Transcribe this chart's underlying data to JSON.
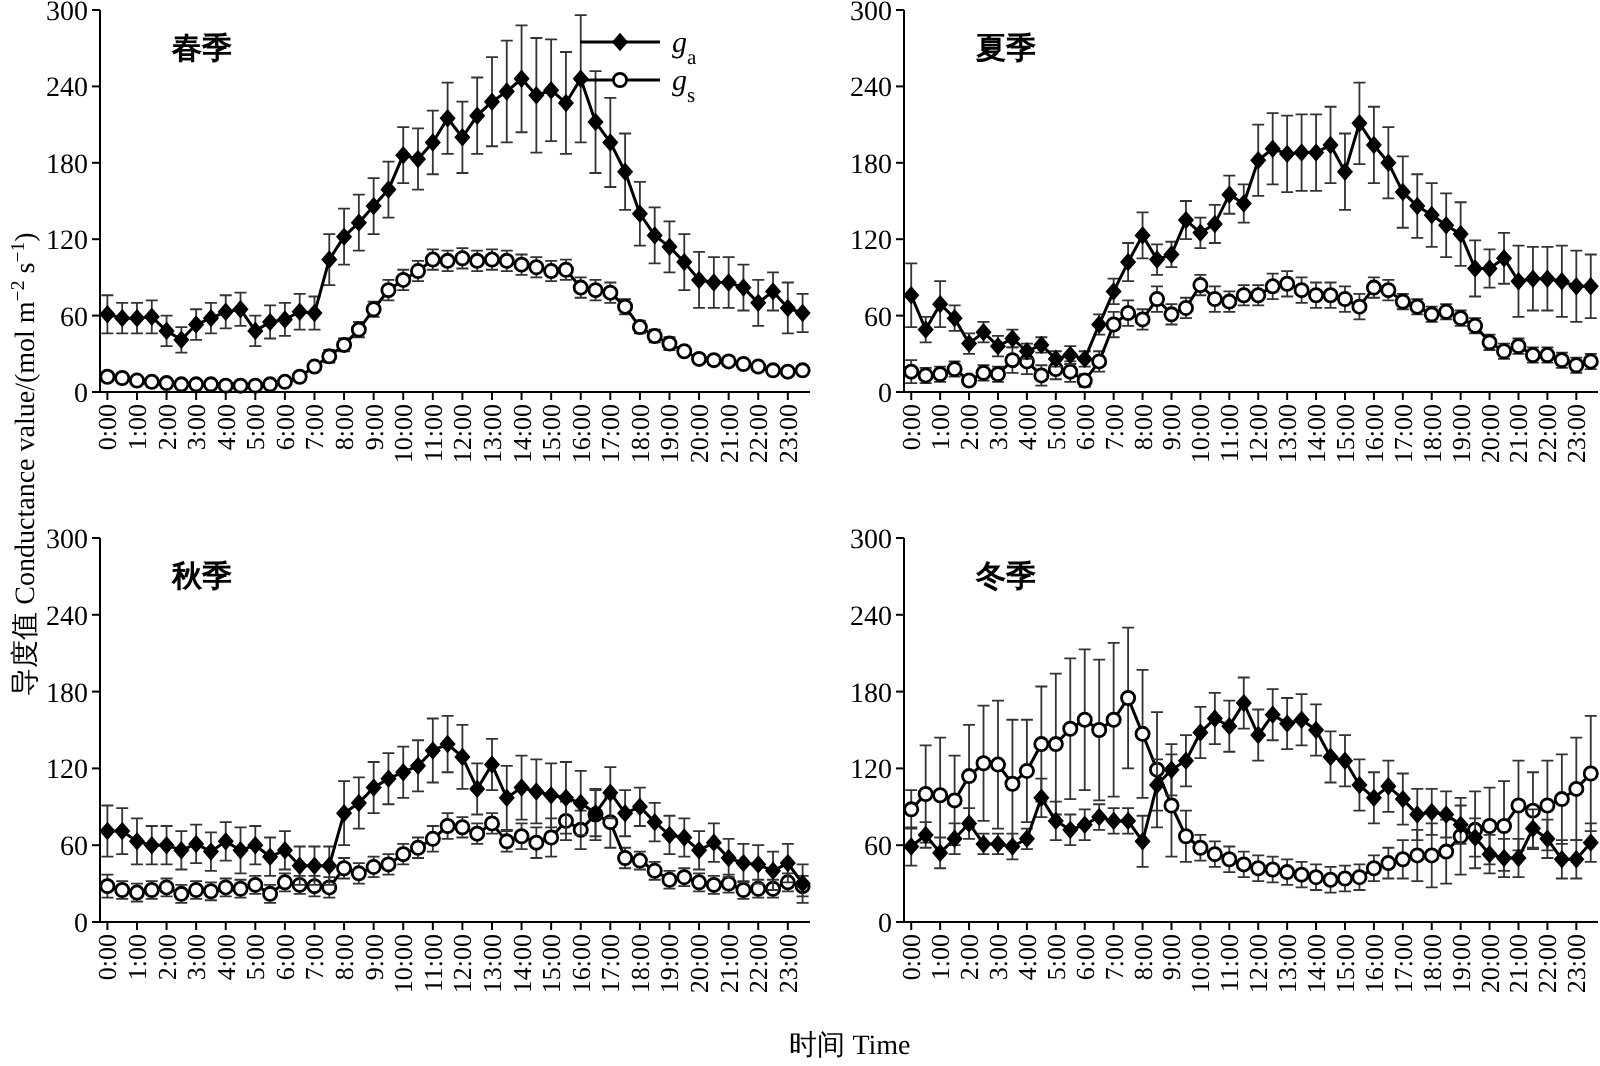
{
  "chart_data": [
    {
      "type": "line",
      "title": "春季",
      "ylabel": "导度值 Conductance value/(mol m$^{−2}$ s$^{−1}$)",
      "xlabel": "时间 Time",
      "legend": "top right",
      "categories": [
        "0:00",
        null,
        "1:00",
        null,
        "2:00",
        null,
        "3:00",
        null,
        "4:00",
        null,
        "5:00",
        null,
        "6:00",
        null,
        "7:00",
        null,
        "8:00",
        null,
        "9:00",
        null,
        "10:00",
        null,
        "11:00",
        null,
        "12:00",
        null,
        "13:00",
        null,
        "14:00",
        null,
        "15:00",
        null,
        "16:00",
        null,
        "17:00",
        null,
        "18:00",
        null,
        "19:00",
        null,
        "20:00",
        null,
        "21:00",
        null,
        "22:00",
        null,
        "23:00",
        null
      ],
      "ylim": [
        0,
        300
      ],
      "yticks": [
        0,
        60,
        120,
        180,
        240,
        300
      ],
      "series": [
        {
          "name": "g$_{a}$",
          "color": "#000000",
          "marker": "diamond",
          "values": [
            61,
            58,
            58,
            59,
            48,
            41,
            53,
            58,
            63,
            65,
            48,
            55,
            57,
            63,
            62,
            104,
            122,
            133,
            146,
            159,
            186,
            183,
            196,
            215,
            200,
            217,
            228,
            236,
            246,
            233,
            237,
            227,
            246,
            212,
            196,
            173,
            140,
            123,
            114,
            102,
            88,
            86,
            86,
            82,
            70,
            79,
            66,
            62
          ],
          "errors": [
            15,
            12,
            12,
            13,
            12,
            10,
            12,
            12,
            13,
            13,
            12,
            13,
            13,
            14,
            13,
            20,
            22,
            22,
            22,
            22,
            22,
            24,
            25,
            28,
            28,
            30,
            35,
            40,
            42,
            45,
            40,
            40,
            50,
            40,
            35,
            30,
            25,
            22,
            20,
            22,
            22,
            20,
            20,
            18,
            18,
            15,
            20,
            15
          ]
        },
        {
          "name": "g$_{s}$",
          "color": "#000000",
          "marker": "circle",
          "values": [
            12,
            11,
            9,
            8,
            7,
            6,
            6,
            6,
            5,
            5,
            5,
            6,
            8,
            12,
            20,
            28,
            37,
            49,
            65,
            80,
            88,
            95,
            104,
            103,
            105,
            103,
            104,
            103,
            100,
            98,
            95,
            96,
            82,
            80,
            78,
            67,
            51,
            44,
            38,
            32,
            26,
            25,
            24,
            22,
            20,
            17,
            16,
            17
          ],
          "errors": [
            null,
            null,
            null,
            null,
            null,
            null,
            null,
            null,
            null,
            null,
            null,
            null,
            null,
            null,
            null,
            5,
            5,
            6,
            6,
            8,
            8,
            8,
            8,
            8,
            8,
            8,
            8,
            8,
            8,
            8,
            8,
            8,
            8,
            8,
            8,
            6,
            5,
            5,
            5,
            null,
            null,
            null,
            null,
            null,
            null,
            null,
            null,
            null
          ]
        }
      ]
    },
    {
      "type": "line",
      "title": "夏季",
      "categories": [
        "0:00",
        null,
        "1:00",
        null,
        "2:00",
        null,
        "3:00",
        null,
        "4:00",
        null,
        "5:00",
        null,
        "6:00",
        null,
        "7:00",
        null,
        "8:00",
        null,
        "9:00",
        null,
        "10:00",
        null,
        "11:00",
        null,
        "12:00",
        null,
        "13:00",
        null,
        "14:00",
        null,
        "15:00",
        null,
        "16:00",
        null,
        "17:00",
        null,
        "18:00",
        null,
        "19:00",
        null,
        "20:00",
        null,
        "21:00",
        null,
        "22:00",
        null,
        "23:00",
        null
      ],
      "ylim": [
        0,
        300
      ],
      "yticks": [
        0,
        60,
        120,
        180,
        240,
        300
      ],
      "series": [
        {
          "color": "#000000",
          "marker": "diamond",
          "values": [
            76,
            49,
            69,
            58,
            38,
            47,
            36,
            42,
            32,
            37,
            26,
            29,
            26,
            53,
            79,
            102,
            123,
            104,
            108,
            135,
            125,
            132,
            155,
            148,
            182,
            191,
            187,
            188,
            188,
            194,
            173,
            211,
            194,
            180,
            157,
            146,
            139,
            131,
            124,
            97,
            97,
            105,
            87,
            89,
            89,
            87,
            83,
            83
          ],
          "errors": [
            25,
            10,
            18,
            10,
            8,
            8,
            8,
            7,
            6,
            6,
            6,
            7,
            6,
            8,
            10,
            15,
            18,
            12,
            10,
            15,
            12,
            15,
            15,
            15,
            28,
            28,
            30,
            30,
            30,
            30,
            30,
            32,
            30,
            28,
            28,
            25,
            25,
            25,
            25,
            22,
            15,
            20,
            28,
            25,
            25,
            28,
            28,
            25
          ]
        },
        {
          "color": "#000000",
          "marker": "circle",
          "values": [
            16,
            13,
            14,
            18,
            9,
            15,
            14,
            25,
            24,
            13,
            18,
            16,
            9,
            24,
            53,
            62,
            57,
            73,
            61,
            66,
            84,
            73,
            71,
            76,
            76,
            83,
            85,
            80,
            76,
            76,
            73,
            67,
            82,
            80,
            71,
            67,
            61,
            63,
            58,
            52,
            39,
            32,
            36,
            29,
            29,
            25,
            21,
            24
          ],
          "errors": [
            9,
            6,
            6,
            6,
            null,
            6,
            6,
            10,
            10,
            8,
            8,
            8,
            5,
            8,
            10,
            10,
            8,
            10,
            8,
            8,
            8,
            10,
            8,
            8,
            8,
            10,
            10,
            10,
            10,
            10,
            10,
            10,
            8,
            8,
            6,
            6,
            6,
            6,
            6,
            6,
            6,
            6,
            6,
            6,
            6,
            6,
            6,
            6
          ]
        }
      ]
    },
    {
      "type": "line",
      "title": "秋季",
      "categories": [
        "0:00",
        null,
        "1:00",
        null,
        "2:00",
        null,
        "3:00",
        null,
        "4:00",
        null,
        "5:00",
        null,
        "6:00",
        null,
        "7:00",
        null,
        "8:00",
        null,
        "9:00",
        null,
        "10:00",
        null,
        "11:00",
        null,
        "12:00",
        null,
        "13:00",
        null,
        "14:00",
        null,
        "15:00",
        null,
        "16:00",
        null,
        "17:00",
        null,
        "18:00",
        null,
        "19:00",
        null,
        "20:00",
        null,
        "21:00",
        null,
        "22:00",
        null,
        "23:00",
        null
      ],
      "ylim": [
        0,
        300
      ],
      "yticks": [
        0,
        60,
        120,
        180,
        240,
        300
      ],
      "series": [
        {
          "color": "#000000",
          "marker": "diamond",
          "values": [
            71,
            71,
            63,
            60,
            60,
            56,
            61,
            55,
            63,
            56,
            60,
            51,
            56,
            44,
            44,
            44,
            85,
            93,
            105,
            112,
            117,
            122,
            134,
            139,
            129,
            104,
            123,
            97,
            105,
            102,
            99,
            97,
            93,
            85,
            101,
            85,
            90,
            78,
            68,
            66,
            56,
            62,
            50,
            46,
            45,
            40,
            46,
            30
          ],
          "errors": [
            20,
            18,
            18,
            15,
            15,
            15,
            15,
            15,
            15,
            18,
            15,
            15,
            15,
            15,
            15,
            15,
            25,
            20,
            20,
            20,
            20,
            20,
            25,
            22,
            25,
            20,
            20,
            25,
            25,
            25,
            25,
            28,
            25,
            18,
            20,
            18,
            15,
            15,
            15,
            15,
            15,
            15,
            15,
            15,
            15,
            15,
            15,
            15
          ]
        },
        {
          "color": "#000000",
          "marker": "circle",
          "values": [
            28,
            25,
            23,
            25,
            27,
            22,
            25,
            24,
            27,
            26,
            29,
            22,
            31,
            29,
            28,
            27,
            42,
            38,
            43,
            45,
            53,
            58,
            65,
            75,
            74,
            69,
            77,
            63,
            67,
            62,
            66,
            79,
            72,
            84,
            78,
            50,
            48,
            40,
            33,
            35,
            31,
            29,
            30,
            25,
            26,
            26,
            31,
            28
          ],
          "errors": [
            9,
            7,
            7,
            7,
            7,
            7,
            7,
            7,
            7,
            7,
            7,
            7,
            7,
            7,
            8,
            8,
            8,
            8,
            8,
            8,
            8,
            8,
            10,
            10,
            8,
            8,
            8,
            8,
            10,
            12,
            15,
            15,
            15,
            20,
            20,
            8,
            7,
            7,
            7,
            7,
            7,
            7,
            7,
            7,
            7,
            7,
            7,
            8
          ]
        }
      ]
    },
    {
      "type": "line",
      "title": "冬季",
      "categories": [
        "0:00",
        null,
        "1:00",
        null,
        "2:00",
        null,
        "3:00",
        null,
        "4:00",
        null,
        "5:00",
        null,
        "6:00",
        null,
        "7:00",
        null,
        "8:00",
        null,
        "9:00",
        null,
        "10:00",
        null,
        "11:00",
        null,
        "12:00",
        null,
        "13:00",
        null,
        "14:00",
        null,
        "15:00",
        null,
        "16:00",
        null,
        "17:00",
        null,
        "18:00",
        null,
        "19:00",
        null,
        "20:00",
        null,
        "21:00",
        null,
        "22:00",
        null,
        "23:00",
        null
      ],
      "ylim": [
        0,
        300
      ],
      "yticks": [
        0,
        60,
        120,
        180,
        240,
        300
      ],
      "series": [
        {
          "color": "#000000",
          "marker": "diamond",
          "values": [
            59,
            68,
            54,
            65,
            77,
            61,
            61,
            59,
            65,
            97,
            79,
            72,
            76,
            82,
            79,
            79,
            63,
            107,
            119,
            126,
            148,
            159,
            153,
            171,
            146,
            162,
            155,
            158,
            150,
            129,
            126,
            107,
            97,
            106,
            96,
            84,
            86,
            84,
            76,
            66,
            53,
            50,
            50,
            73,
            65,
            49,
            49,
            62
          ],
          "errors": [
            15,
            10,
            12,
            12,
            12,
            8,
            8,
            10,
            8,
            15,
            15,
            12,
            12,
            10,
            10,
            10,
            20,
            20,
            20,
            20,
            20,
            20,
            20,
            20,
            20,
            20,
            20,
            20,
            20,
            20,
            20,
            20,
            20,
            20,
            20,
            20,
            18,
            18,
            15,
            15,
            15,
            15,
            15,
            15,
            15,
            15,
            15,
            15
          ]
        },
        {
          "color": "#000000",
          "marker": "circle",
          "values": [
            88,
            100,
            99,
            95,
            114,
            124,
            123,
            108,
            118,
            139,
            139,
            151,
            158,
            150,
            158,
            175,
            147,
            119,
            91,
            67,
            58,
            53,
            49,
            45,
            42,
            41,
            39,
            37,
            35,
            33,
            34,
            35,
            42,
            46,
            49,
            52,
            52,
            55,
            67,
            72,
            75,
            75,
            91,
            87,
            91,
            96,
            104,
            116
          ],
          "errors": [
            15,
            38,
            45,
            35,
            40,
            45,
            50,
            50,
            40,
            45,
            55,
            55,
            55,
            55,
            60,
            55,
            50,
            45,
            40,
            20,
            10,
            10,
            10,
            10,
            10,
            10,
            10,
            10,
            10,
            10,
            10,
            10,
            10,
            12,
            15,
            20,
            25,
            25,
            30,
            30,
            30,
            35,
            35,
            30,
            35,
            35,
            40,
            45
          ]
        }
      ]
    }
  ]
}
